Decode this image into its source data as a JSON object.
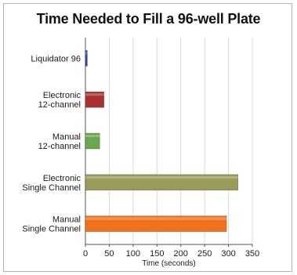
{
  "chart_data": {
    "type": "bar",
    "orientation": "horizontal",
    "title": "Time Needed to Fill a 96-well Plate",
    "xlabel": "Time (seconds)",
    "ylabel": "",
    "categories": [
      [
        "Liquidator 96"
      ],
      [
        "Electronic",
        "12-channel"
      ],
      [
        "Manual",
        "12-channel"
      ],
      [
        "Electronic",
        "Single Channel"
      ],
      [
        "Manual",
        "Single Channel"
      ]
    ],
    "values": [
      4,
      39,
      30,
      320,
      296
    ],
    "colors": [
      "#2b4fb0",
      "#a83232",
      "#6aa84f",
      "#9a9a5a",
      "#f2711c"
    ],
    "xlim": [
      0,
      350
    ],
    "xticks": [
      0,
      50,
      100,
      150,
      200,
      250,
      300,
      350
    ],
    "grid": "vertical",
    "legend": "none"
  }
}
